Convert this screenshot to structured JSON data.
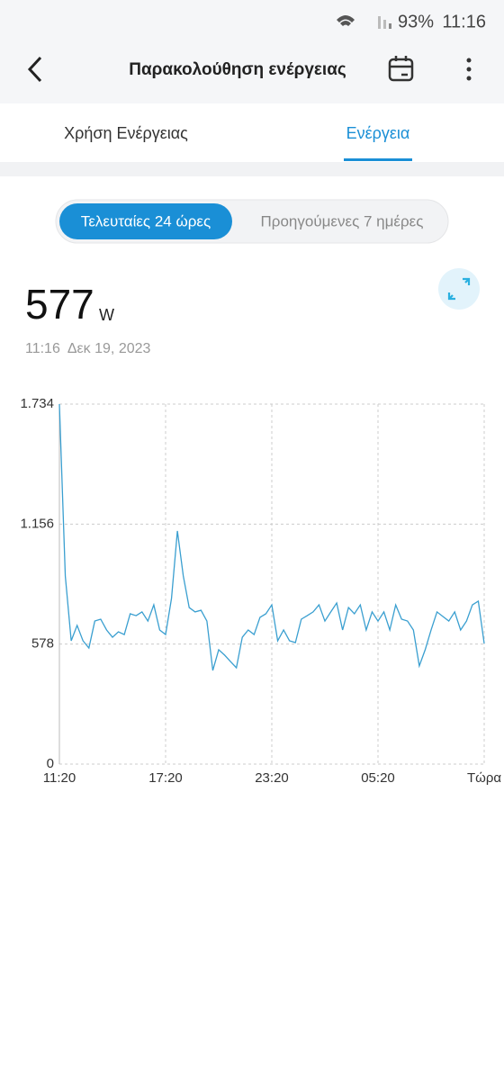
{
  "status_bar": {
    "battery": "93%",
    "time": "11:16"
  },
  "header": {
    "title": "Παρακολούθηση ενέργειας"
  },
  "tabs": [
    "Χρήση Ενέργειας",
    "Ενέργεια"
  ],
  "segments": [
    "Τελευταίες 24 ώρες",
    "Προηγούμενες 7 ημέρες"
  ],
  "reading": {
    "value": 577,
    "unit": "W",
    "timestamp": "11:16  Δεκ 19, 2023"
  },
  "chart_data": {
    "type": "line",
    "color": "#3a9fd0",
    "grid": true,
    "x": [
      "11:20",
      "11:40",
      "12:00",
      "12:20",
      "12:40",
      "13:00",
      "13:20",
      "13:40",
      "14:00",
      "14:20",
      "14:40",
      "15:00",
      "15:20",
      "15:40",
      "16:00",
      "16:20",
      "16:40",
      "17:00",
      "17:20",
      "17:40",
      "18:00",
      "18:20",
      "18:40",
      "19:00",
      "19:20",
      "19:40",
      "20:00",
      "20:20",
      "20:40",
      "21:00",
      "21:20",
      "21:40",
      "22:00",
      "22:20",
      "22:40",
      "23:00",
      "23:20",
      "23:40",
      "00:00",
      "00:20",
      "00:40",
      "01:00",
      "01:20",
      "01:40",
      "02:00",
      "02:20",
      "02:40",
      "03:00",
      "03:20",
      "03:40",
      "04:00",
      "04:20",
      "04:40",
      "05:00",
      "05:20",
      "05:40",
      "06:00",
      "06:20",
      "06:40",
      "07:00",
      "07:20",
      "07:40",
      "08:00",
      "08:20",
      "08:40",
      "09:00",
      "09:20",
      "09:40",
      "10:00",
      "10:20",
      "10:40",
      "11:00",
      "11:20"
    ],
    "values": [
      1734,
      906,
      594,
      668,
      594,
      559,
      689,
      698,
      646,
      611,
      637,
      624,
      724,
      715,
      733,
      689,
      767,
      646,
      624,
      798,
      1123,
      906,
      754,
      733,
      741,
      689,
      451,
      551,
      525,
      494,
      464,
      611,
      646,
      624,
      707,
      724,
      767,
      594,
      646,
      594,
      585,
      698,
      715,
      733,
      767,
      689,
      733,
      776,
      646,
      754,
      724,
      767,
      646,
      733,
      689,
      733,
      646,
      767,
      698,
      689,
      646,
      473,
      551,
      646,
      733,
      711,
      689,
      733,
      646,
      689,
      767,
      785,
      581
    ],
    "xlim": [
      0,
      72
    ],
    "xticks": [
      {
        "value": 0,
        "label": "11:20"
      },
      {
        "value": 18,
        "label": "17:20"
      },
      {
        "value": 36,
        "label": "23:20"
      },
      {
        "value": 54,
        "label": "05:20"
      },
      {
        "value": 72,
        "label": "Τώρα"
      }
    ],
    "ylim": [
      0,
      1734
    ],
    "yticks": [
      0,
      578,
      {
        "value": 1156,
        "label": "1.156"
      },
      {
        "value": 1734,
        "label": "1.734"
      }
    ]
  }
}
